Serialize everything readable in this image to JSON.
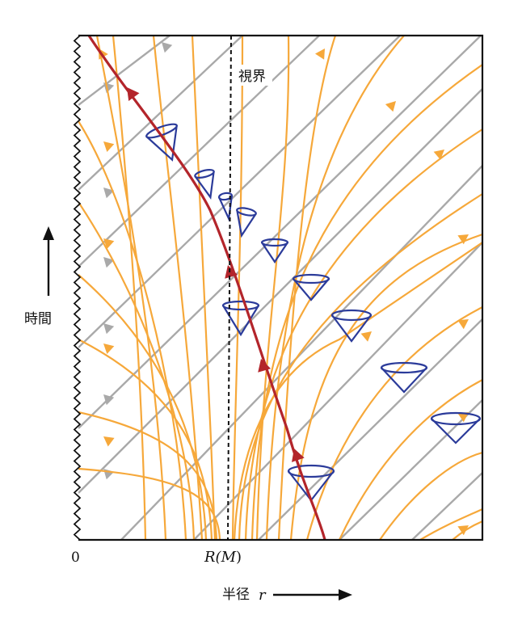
{
  "labels": {
    "horizon": "視界",
    "time_axis": "時間",
    "origin_tick": "0",
    "radius_tick_prefix": "R(",
    "radius_tick_mass": "M",
    "radius_tick_suffix": ")",
    "radius_axis_word": "半径",
    "radius_axis_symbol": "r"
  },
  "colors": {
    "light_ray_outgoing": "#f6a83a",
    "light_ray_ingoing": "#a9a9a9",
    "particle_worldline": "#b3252b",
    "light_cone": "#2b3b9a",
    "horizon_line": "#111111",
    "frame": "#111111"
  },
  "icons": {
    "singularity_edge": "zigzag-line",
    "time_arrow": "arrow-up",
    "radius_arrow": "arrow-right"
  }
}
